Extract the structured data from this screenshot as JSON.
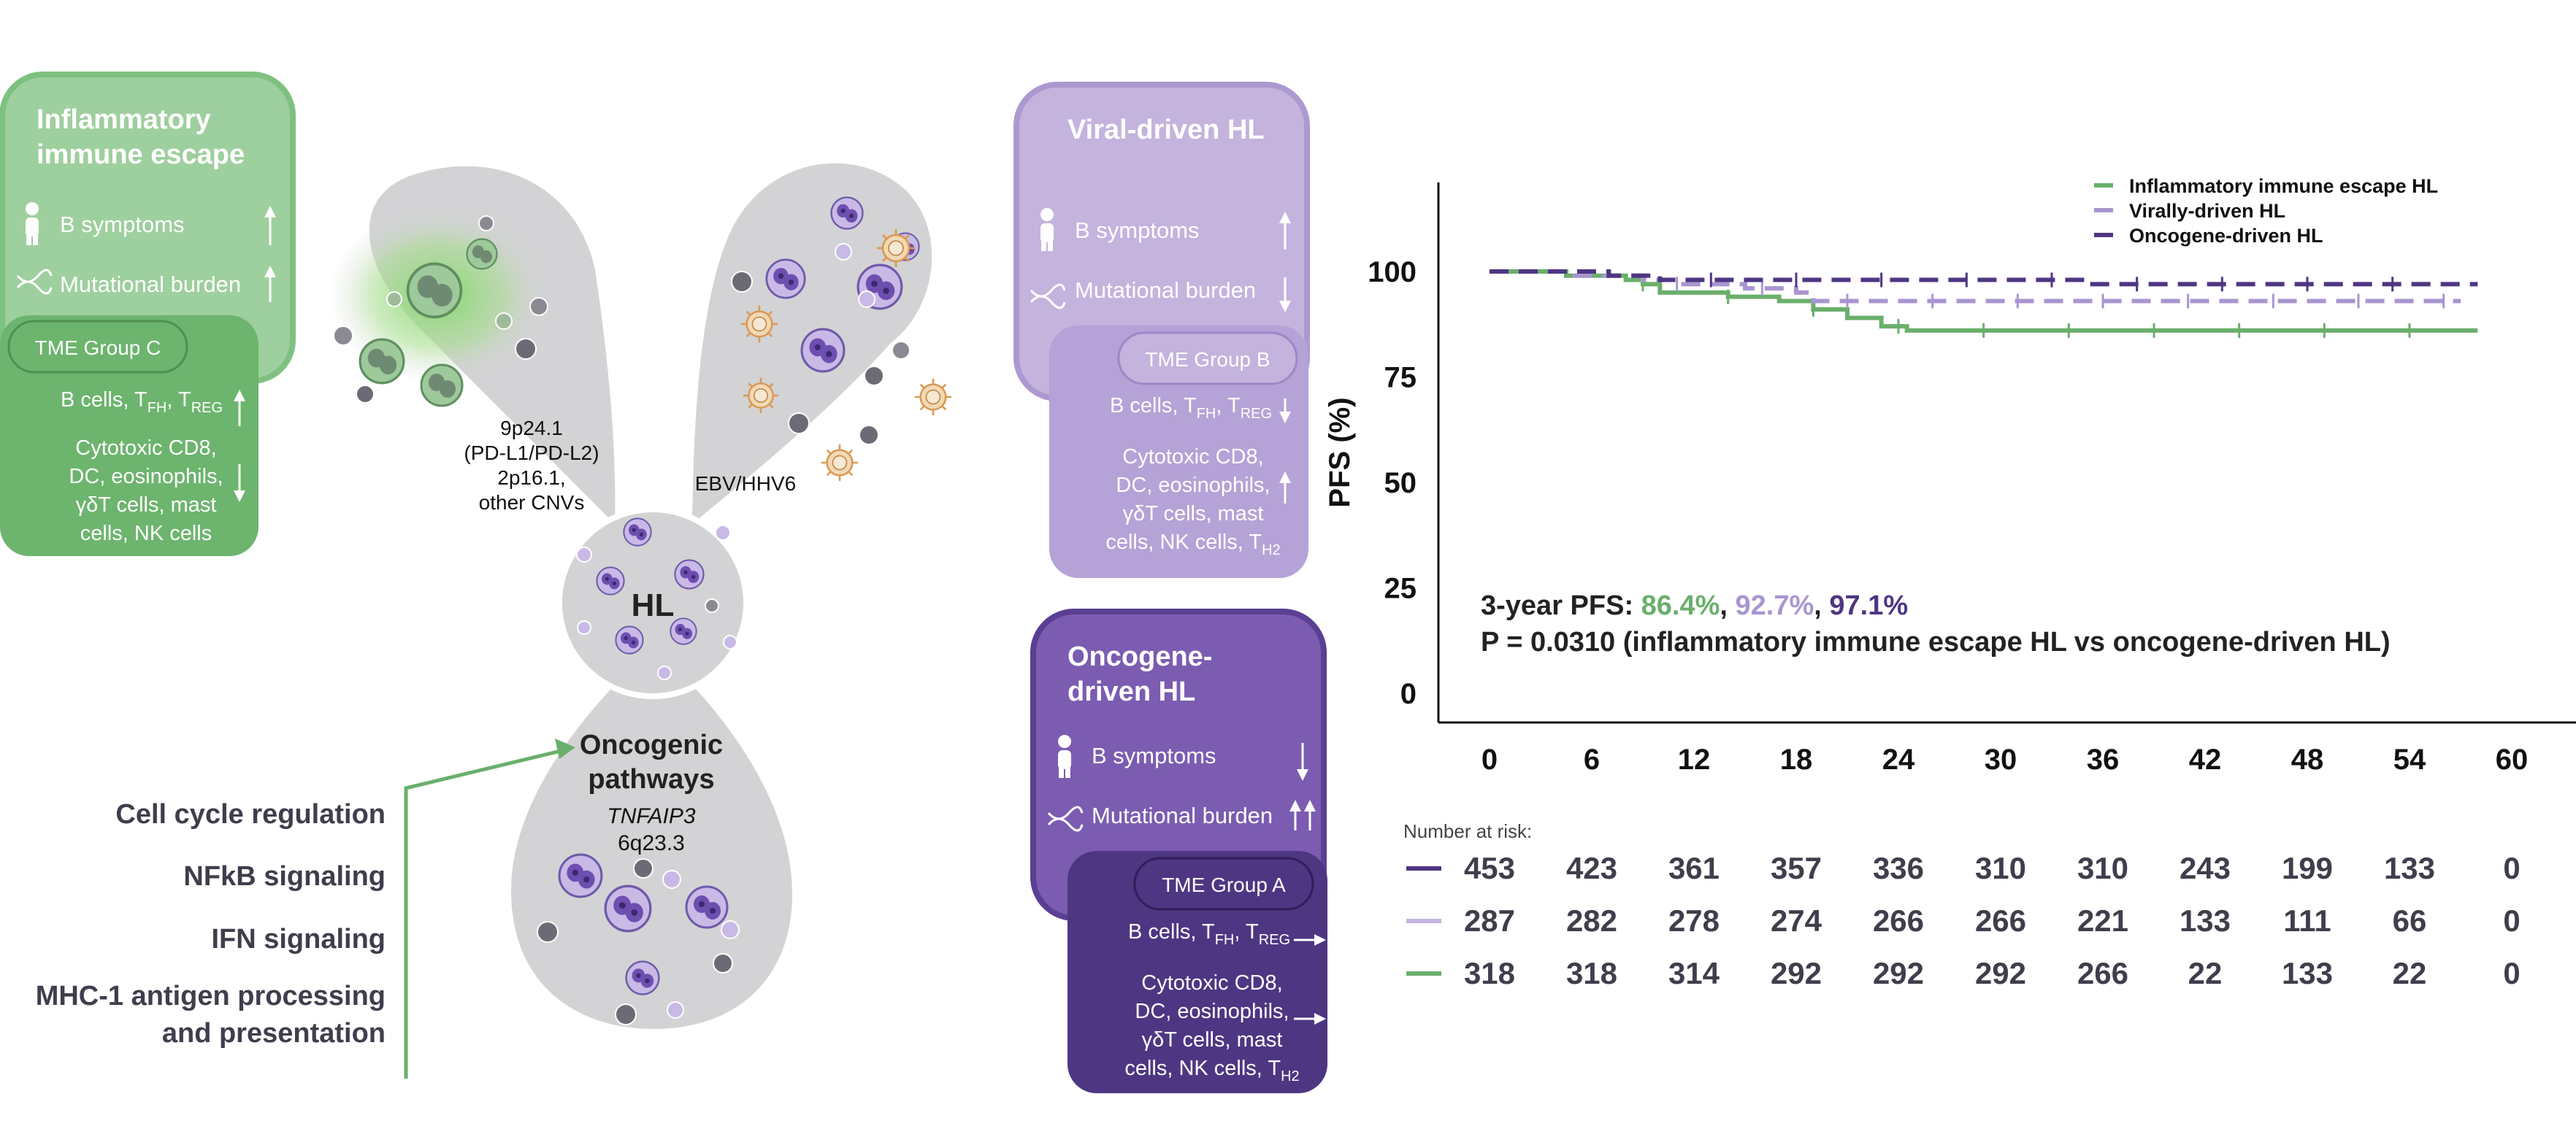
{
  "colors": {
    "green_light": "#9ecf9e",
    "green_dark": "#6db46e",
    "green_border": "#7fc180",
    "lav_light": "#c4b3dd",
    "lav_border": "#ad99d0",
    "purple_mid": "#7b5cb1",
    "purple_dark": "#4e3682",
    "gray_blob": "#d3d3d5",
    "text_dark": "#4a4a5a",
    "line_green": "#6aaf6b",
    "line_lav": "#a995d0",
    "line_purple": "#4e3682"
  },
  "icons": {
    "person": "person-icon",
    "dna": "dna-icon",
    "up": "arrow-up-icon",
    "down": "arrow-down-icon",
    "right": "arrow-right-icon"
  },
  "inflammatory": {
    "title_line1": "Inflammatory",
    "title_line2": "immune escape",
    "b_symptoms": "B symptoms",
    "mutational_burden": "Mutational burden",
    "tme_group": "TME Group C",
    "b_cells": "B cells, T",
    "b_cells_fh": "FH",
    "b_cells_comma": ", T",
    "b_cells_reg": "REG",
    "cyto_line1": "Cytotoxic CD8,",
    "cyto_line2": "DC, eosinophils,",
    "cyto_line3": "γδT cells, mast",
    "cyto_line4": "cells, NK cells"
  },
  "viral": {
    "title": "Viral-driven HL",
    "b_symptoms": "B symptoms",
    "mutational_burden": "Mutational burden",
    "tme_group": "TME Group B",
    "b_cells": "B cells, T",
    "b_cells_fh": "FH",
    "b_cells_comma": ", T",
    "b_cells_reg": "REG",
    "cyto_line1": "Cytotoxic CD8,",
    "cyto_line2": "DC, eosinophils,",
    "cyto_line3": "γδT cells, mast",
    "cyto_line4": "cells, NK cells, T",
    "cyto_line4_sub": "H2"
  },
  "oncogene": {
    "title_line1": "Oncogene-",
    "title_line2": "driven HL",
    "b_symptoms": "B symptoms",
    "mutational_burden": "Mutational burden",
    "tme_group": "TME Group A",
    "b_cells": "B cells, T",
    "b_cells_fh": "FH",
    "b_cells_comma": ", T",
    "b_cells_reg": "REG",
    "cyto_line1": "Cytotoxic CD8,",
    "cyto_line2": "DC, eosinophils,",
    "cyto_line3": "γδT cells, mast",
    "cyto_line4": "cells, NK cells, T",
    "cyto_line4_sub": "H2"
  },
  "center": {
    "hl_label": "HL",
    "left_line1": "9p24.1",
    "left_line2": "(PD-L1/PD-L2)",
    "left_line3": "2p16.1,",
    "left_line4": "other CNVs",
    "right_label": "EBV/HHV6",
    "bottom_title_line1": "Oncogenic",
    "bottom_title_line2": "pathways",
    "bottom_gene": "TNFAIP3",
    "bottom_locus": "6q23.3"
  },
  "pathways": [
    "Cell cycle regulation",
    "NFkB signaling",
    "IFN signaling",
    "MHC-1 antigen processing",
    "and presentation"
  ],
  "chart_data": {
    "type": "line",
    "subtype": "kaplan-meier",
    "ylabel": "PFS (%)",
    "xlabel": "",
    "ylim": [
      0,
      100
    ],
    "xlim": [
      0,
      60
    ],
    "yticks": [
      "0",
      "25",
      "50",
      "75",
      "100"
    ],
    "xticks": [
      "0",
      "6",
      "12",
      "18",
      "24",
      "30",
      "36",
      "42",
      "48",
      "54",
      "60"
    ],
    "legend_position": "top-right",
    "series": [
      {
        "name": "Inflammatory immune escape HL",
        "color": "#6aaf6b",
        "dash": false,
        "points": [
          [
            0,
            100
          ],
          [
            4,
            100
          ],
          [
            4.5,
            99
          ],
          [
            8,
            98
          ],
          [
            9,
            97
          ],
          [
            10,
            95
          ],
          [
            13,
            95
          ],
          [
            14,
            94
          ],
          [
            17,
            93
          ],
          [
            19,
            91
          ],
          [
            21,
            89
          ],
          [
            23,
            87
          ],
          [
            24.5,
            86
          ],
          [
            58,
            86
          ]
        ]
      },
      {
        "name": "Virally-driven HL",
        "color": "#a995d0",
        "dash": true,
        "points": [
          [
            0,
            100
          ],
          [
            4,
            100
          ],
          [
            5,
            99
          ],
          [
            9,
            98
          ],
          [
            11,
            97
          ],
          [
            15,
            96
          ],
          [
            18,
            95
          ],
          [
            19,
            93
          ],
          [
            57,
            93
          ]
        ]
      },
      {
        "name": "Oncogene-driven HL",
        "color": "#4e3682",
        "dash": true,
        "points": [
          [
            0,
            100
          ],
          [
            6,
            100
          ],
          [
            7,
            99
          ],
          [
            10,
            98
          ],
          [
            34,
            98
          ],
          [
            35,
            97
          ],
          [
            58,
            97
          ]
        ]
      }
    ],
    "annotation_label": "3-year PFS: ",
    "annotation_values": [
      "86.4%",
      "92.7%",
      "97.1%"
    ],
    "annotation_commas": [
      ", ",
      ", "
    ],
    "pvalue_text": "P = 0.0310 (inflammatory immune escape HL vs oncogene-driven HL)",
    "risk_table": {
      "title": "Number at risk:",
      "times": [
        0,
        6,
        12,
        18,
        24,
        30,
        36,
        42,
        48,
        54,
        60
      ],
      "rows": [
        {
          "color": "#4e3682",
          "values": [
            453,
            423,
            361,
            357,
            336,
            310,
            310,
            243,
            199,
            133,
            0
          ]
        },
        {
          "color": "#c4b3dd",
          "values": [
            287,
            282,
            278,
            274,
            266,
            266,
            221,
            133,
            111,
            66,
            0
          ]
        },
        {
          "color": "#6aaf6b",
          "values": [
            318,
            318,
            314,
            292,
            292,
            292,
            266,
            22,
            133,
            22,
            0
          ]
        }
      ]
    }
  }
}
